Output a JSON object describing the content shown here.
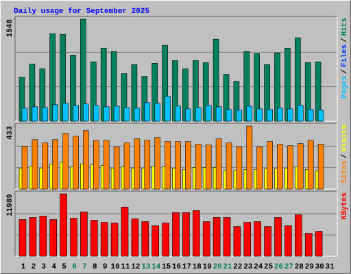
{
  "title": "Daily usage for September 2025",
  "chart_data": [
    {
      "type": "bar",
      "ylim": [
        0,
        1548
      ],
      "yticks": [
        1548
      ],
      "legend": [
        {
          "text": "Pages",
          "color": "#00c0ff"
        },
        {
          "text": "/",
          "color": "#000000"
        },
        {
          "text": "Files",
          "color": "#0040ff"
        },
        {
          "text": "/",
          "color": "#000000"
        },
        {
          "text": "Hits",
          "color": "#00805c"
        }
      ],
      "series": [
        {
          "color": "#00805c",
          "values": [
            669,
            868,
            795,
            1328,
            1318,
            1004,
            1548,
            900,
            1109,
            1056,
            722,
            858,
            680,
            879,
            1151,
            920,
            795,
            920,
            889,
            1245,
            711,
            607,
            1056,
            1025,
            858,
            1036,
            1109,
            1266,
            889,
            900,
            null
          ]
        },
        {
          "color": "#00c0ff",
          "values": [
            199,
            220,
            209,
            251,
            272,
            241,
            262,
            241,
            220,
            230,
            209,
            199,
            282,
            272,
            377,
            230,
            188,
            209,
            241,
            220,
            178,
            167,
            230,
            188,
            178,
            199,
            188,
            241,
            178,
            167,
            null
          ]
        }
      ]
    },
    {
      "type": "bar",
      "ylim": [
        0,
        433
      ],
      "yticks": [
        433
      ],
      "legend": [
        {
          "text": "Sites",
          "color": "#ff8000"
        },
        {
          "text": "/",
          "color": "#000000"
        },
        {
          "text": "Visits",
          "color": "#ffff00"
        }
      ],
      "series": [
        {
          "color": "#ffff00",
          "values": [
            144,
            158,
            144,
            172,
            186,
            154,
            172,
            168,
            163,
            144,
            154,
            144,
            144,
            158,
            154,
            144,
            135,
            149,
            149,
            149,
            130,
            130,
            135,
            135,
            140,
            140,
            144,
            154,
            135,
            126,
            null
          ]
        },
        {
          "color": "#ff8000",
          "values": [
            294,
            340,
            317,
            340,
            382,
            363,
            401,
            335,
            335,
            289,
            317,
            345,
            335,
            354,
            326,
            326,
            326,
            308,
            303,
            345,
            317,
            289,
            433,
            289,
            326,
            308,
            298,
            312,
            335,
            308,
            null
          ]
        }
      ]
    },
    {
      "type": "bar",
      "ylim": [
        0,
        11989
      ],
      "yticks": [
        11989
      ],
      "legend": [
        {
          "text": "KBytes",
          "color": "#ff0000"
        }
      ],
      "series": [
        {
          "color": "#ff0000",
          "values": [
            7050,
            7448,
            7714,
            7050,
            11989,
            7315,
            8512,
            6916,
            6517,
            6384,
            9443,
            7182,
            6650,
            5852,
            6384,
            8379,
            8379,
            8778,
            6650,
            7448,
            7448,
            5719,
            6517,
            6650,
            5719,
            7448,
            5852,
            7980,
            4389,
            4788,
            null
          ]
        }
      ],
      "categories": [
        "1",
        "2",
        "3",
        "4",
        "5",
        "6",
        "7",
        "8",
        "9",
        "10",
        "11",
        "12",
        "13",
        "14",
        "15",
        "16",
        "17",
        "18",
        "19",
        "20",
        "21",
        "22",
        "23",
        "24",
        "25",
        "26",
        "27",
        "28",
        "29",
        "30",
        "31"
      ],
      "label_colors": [
        "#000000",
        "#000000",
        "#000000",
        "#000000",
        "#000000",
        "#00805c",
        "#00805c",
        "#000000",
        "#000000",
        "#000000",
        "#000000",
        "#000000",
        "#00805c",
        "#00805c",
        "#000000",
        "#000000",
        "#000000",
        "#000000",
        "#000000",
        "#00805c",
        "#00805c",
        "#000000",
        "#000000",
        "#000000",
        "#000000",
        "#00805c",
        "#00805c",
        "#000000",
        "#000000",
        "#000000",
        "#000000"
      ]
    }
  ]
}
